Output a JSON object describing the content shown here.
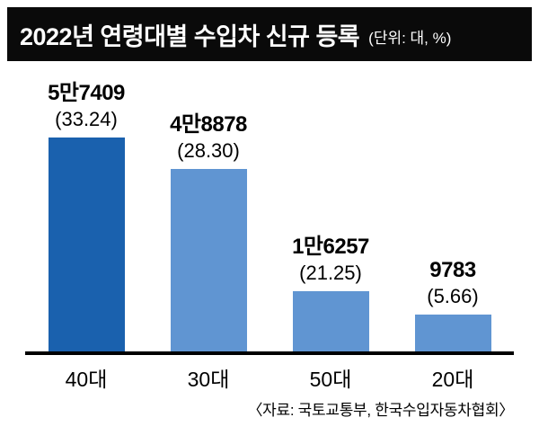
{
  "header": {
    "title": "2022년 연령대별 수입차 신규 등록",
    "unit_note": "(단위: 대, %)"
  },
  "source": "〈자료: 국토교통부, 한국수입자동차협회〉",
  "colors": {
    "header_bg": "#0a0a0a",
    "bar_primary": "#1a61ae",
    "bar_secondary": "#6095d2",
    "baseline": "#000000"
  },
  "chart_data": {
    "type": "bar",
    "title": "2022년 연령대별 수입차 신규 등록",
    "unit": "대, %",
    "categories": [
      "40대",
      "30대",
      "50대",
      "20대"
    ],
    "values": [
      57409,
      48878,
      16257,
      9783
    ],
    "percentages": [
      33.24,
      28.3,
      21.25,
      5.66
    ],
    "value_labels": [
      "5만7409",
      "4만8878",
      "1만6257",
      "9783"
    ],
    "pct_labels": [
      "(33.24)",
      "(28.30)",
      "(21.25)",
      "(5.66)"
    ],
    "ylim": [
      0,
      60000
    ],
    "grid": false,
    "legend": "none",
    "source": "자료: 국토교통부, 한국수입자동차협회"
  }
}
